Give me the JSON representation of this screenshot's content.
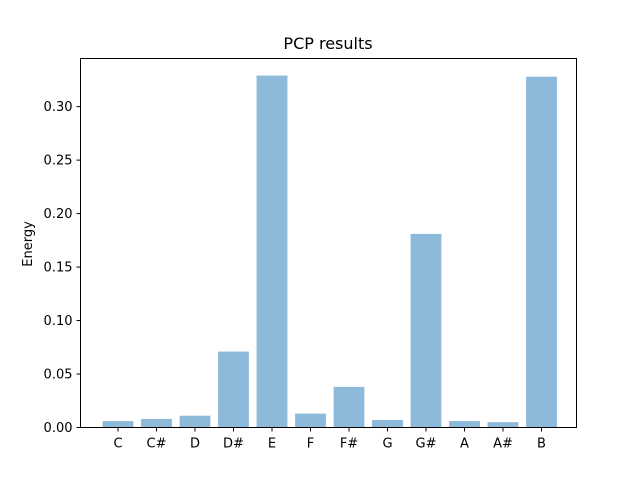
{
  "chart_data": {
    "type": "bar",
    "title": "PCP results",
    "xlabel": "",
    "ylabel": "Energy",
    "categories": [
      "C",
      "C#",
      "D",
      "D#",
      "E",
      "F",
      "F#",
      "G",
      "G#",
      "A",
      "A#",
      "B"
    ],
    "values": [
      0.006,
      0.008,
      0.011,
      0.071,
      0.329,
      0.013,
      0.038,
      0.007,
      0.181,
      0.006,
      0.005,
      0.328
    ],
    "ylim": [
      0,
      0.345
    ],
    "yticks": [
      0.0,
      0.05,
      0.1,
      0.15,
      0.2,
      0.25,
      0.3
    ],
    "ytick_labels": [
      "0.00",
      "0.05",
      "0.10",
      "0.15",
      "0.20",
      "0.25",
      "0.30"
    ],
    "bar_color": "#8dbadb",
    "grid": false,
    "legend": "none"
  }
}
